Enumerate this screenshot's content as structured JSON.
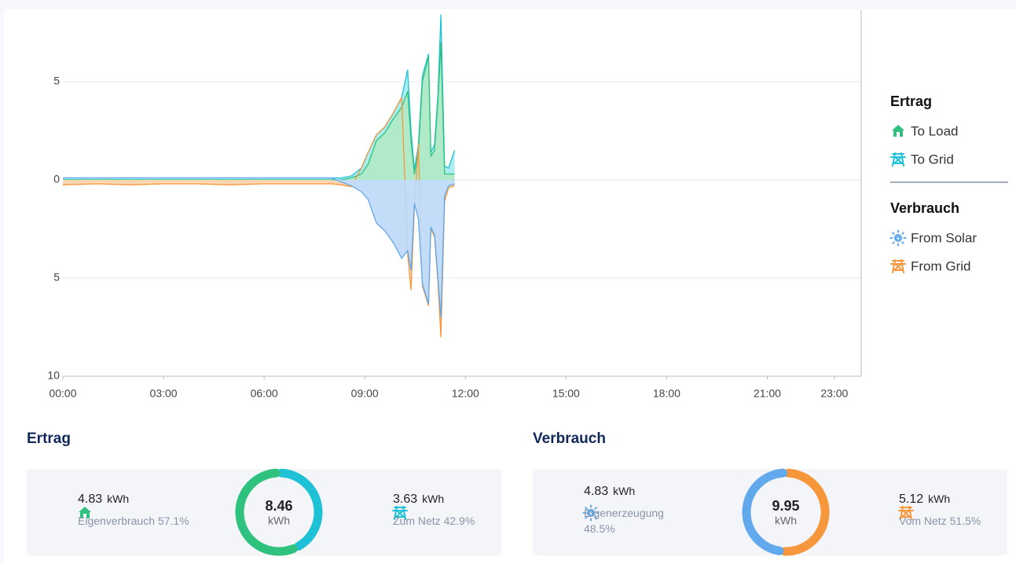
{
  "chart_data": {
    "type": "area",
    "x": [
      0,
      1,
      2,
      3,
      4,
      5,
      6,
      7,
      8,
      8.3,
      8.6,
      8.9,
      9.1,
      9.35,
      9.6,
      9.85,
      10.1,
      10.28,
      10.38,
      10.48,
      10.6,
      10.72,
      10.9,
      10.97,
      11.08,
      11.18,
      11.27,
      11.38,
      11.5,
      11.68
    ],
    "series": [
      {
        "name": "To Load",
        "color": "#2ec27e",
        "fill": "#a9e8c3",
        "values": [
          0,
          0,
          0,
          0,
          0,
          0,
          0,
          0,
          0,
          0,
          0.1,
          0.3,
          0.8,
          2.0,
          2.4,
          3.1,
          3.7,
          4.5,
          2.0,
          0.3,
          1.5,
          5.0,
          6.3,
          1.2,
          1.5,
          4.0,
          7.0,
          0.3,
          0.3,
          0.3
        ]
      },
      {
        "name": "To Grid",
        "color": "#1fc1d6",
        "fill": "#a3ebf1",
        "values": [
          0.1,
          0.1,
          0.1,
          0.1,
          0.1,
          0.1,
          0.1,
          0.1,
          0.1,
          0.1,
          0.1,
          0.3,
          0.6,
          0.3,
          0.3,
          0.3,
          0.5,
          1.1,
          0.5,
          0.2,
          0.3,
          0.3,
          0.1,
          0.2,
          0.3,
          0.3,
          1.4,
          0.4,
          0.3,
          1.2
        ]
      },
      {
        "name": "From Solar",
        "color": "#62a8ec",
        "fill": "#bcd9f7",
        "values": [
          0,
          0,
          0,
          0,
          0,
          0,
          0,
          0,
          0,
          -0.1,
          -0.3,
          -0.6,
          -1.0,
          -2.2,
          -2.6,
          -3.2,
          -4.0,
          -3.6,
          -4.6,
          -1.2,
          -2.0,
          -5.3,
          -6.3,
          -2.4,
          -2.8,
          -5.0,
          -7.0,
          -0.8,
          -0.3,
          -0.2
        ]
      },
      {
        "name": "From Grid",
        "color": "#f5973a",
        "fill": "#fbd2a7",
        "values": [
          -0.25,
          -0.2,
          -0.25,
          -0.2,
          -0.2,
          -0.25,
          -0.2,
          -0.2,
          -0.2,
          -0.15,
          -0.05,
          0,
          0,
          0,
          0,
          0,
          0,
          -0.2,
          -1.0,
          -0.2,
          0,
          -0.1,
          -0.1,
          -0.1,
          -0.1,
          -0.2,
          -1.0,
          -0.3,
          -0.1,
          -0.1
        ]
      }
    ],
    "stacked": true,
    "xlim": [
      0,
      23.8
    ],
    "xticks": [
      {
        "value": 0,
        "label": "00:00"
      },
      {
        "value": 3,
        "label": "03:00"
      },
      {
        "value": 6,
        "label": "06:00"
      },
      {
        "value": 9,
        "label": "09:00"
      },
      {
        "value": 12,
        "label": "12:00"
      },
      {
        "value": 15,
        "label": "15:00"
      },
      {
        "value": 18,
        "label": "18:00"
      },
      {
        "value": 21,
        "label": "21:00"
      },
      {
        "value": 23,
        "label": "23:00"
      }
    ],
    "ylim": [
      -10,
      8.64
    ],
    "yticks": [
      {
        "value": -10,
        "label": "10"
      },
      {
        "value": -5,
        "label": "5"
      },
      0,
      5
    ],
    "grid": true,
    "legend_titles": [
      "Ertrag",
      "Verbrauch"
    ],
    "legend": "right"
  },
  "summary": [
    {
      "title": "Ertrag",
      "total": 8.46,
      "total_unit": "kWh",
      "items": [
        {
          "value": 4.83,
          "unit": "kWh",
          "label": "Eigenverbrauch 57.1%",
          "color": "#2ec27e"
        },
        {
          "value": 3.63,
          "unit": "kWh",
          "label": "Zum Netz 42.9%",
          "color": "#1fc1d6"
        }
      ]
    },
    {
      "title": "Verbrauch",
      "total": 9.95,
      "total_unit": "kWh",
      "items": [
        {
          "value": 4.83,
          "unit": "kWh",
          "label": "Eigenerzeugung 48.5%",
          "color": "#62a8ec"
        },
        {
          "value": 5.12,
          "unit": "kWh",
          "label": "Vom Netz 51.5%",
          "color": "#f5973a"
        }
      ]
    }
  ]
}
